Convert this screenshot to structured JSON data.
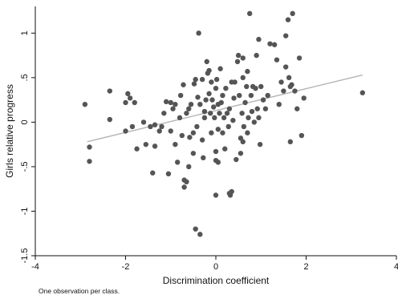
{
  "chart_data": {
    "type": "scatter",
    "title": "",
    "xlabel": "Discrimination coefficient",
    "ylabel": "Girls relative progress",
    "note": "One observation per class.",
    "xlim": [
      -4,
      4
    ],
    "ylim": [
      -1.5,
      1.3
    ],
    "x_ticks": [
      -4,
      -2,
      0,
      2,
      4
    ],
    "x_tick_labels": [
      "-4",
      "-2",
      "0",
      "2",
      "4"
    ],
    "y_ticks": [
      -1.5,
      -1,
      -0.5,
      0,
      0.5,
      1
    ],
    "y_tick_labels": [
      "-1.5",
      "-1",
      "-.5",
      "0",
      ".5",
      "1"
    ],
    "grid": false,
    "marker_color": "#555555",
    "fit_line": {
      "color": "#b4b4b4",
      "x": [
        -2.85,
        3.25
      ],
      "y": [
        -0.22,
        0.53
      ]
    },
    "points": [
      [
        -2.9,
        0.2
      ],
      [
        -2.8,
        -0.28
      ],
      [
        -2.8,
        -0.44
      ],
      [
        -2.35,
        0.03
      ],
      [
        -2.35,
        0.35
      ],
      [
        -2.0,
        -0.1
      ],
      [
        -2.0,
        0.22
      ],
      [
        -1.95,
        0.32
      ],
      [
        -1.9,
        0.27
      ],
      [
        -1.85,
        -0.05
      ],
      [
        -1.8,
        0.22
      ],
      [
        -1.75,
        -0.3
      ],
      [
        -1.6,
        0.0
      ],
      [
        -1.55,
        -0.25
      ],
      [
        -1.45,
        -0.05
      ],
      [
        -1.4,
        -0.57
      ],
      [
        -1.35,
        -0.03
      ],
      [
        -1.35,
        -0.27
      ],
      [
        -1.25,
        -0.1
      ],
      [
        -1.2,
        -0.05
      ],
      [
        -1.15,
        0.1
      ],
      [
        -1.1,
        0.23
      ],
      [
        -1.05,
        -0.58
      ],
      [
        -1.0,
        -0.1
      ],
      [
        -0.95,
        0.15
      ],
      [
        -0.9,
        0.2
      ],
      [
        -0.9,
        -0.25
      ],
      [
        -0.85,
        -0.45
      ],
      [
        -0.8,
        0.05
      ],
      [
        -0.78,
        0.3
      ],
      [
        -0.75,
        -0.15
      ],
      [
        -0.72,
        0.42
      ],
      [
        -0.7,
        -0.65
      ],
      [
        -0.7,
        -0.73
      ],
      [
        -0.65,
        -0.67
      ],
      [
        -0.65,
        0.1
      ],
      [
        -0.6,
        0.15
      ],
      [
        -0.58,
        -0.17
      ],
      [
        -0.55,
        0.2
      ],
      [
        -0.5,
        -0.12
      ],
      [
        -0.5,
        -0.35
      ],
      [
        -0.48,
        0.43
      ],
      [
        -0.45,
        0.48
      ],
      [
        -0.42,
        -0.05
      ],
      [
        -0.4,
        0.28
      ],
      [
        -0.38,
        1.0
      ],
      [
        -0.35,
        0.2
      ],
      [
        -0.3,
        0.48
      ],
      [
        -0.3,
        -0.2
      ],
      [
        -0.28,
        -0.4
      ],
      [
        -0.25,
        0.05
      ],
      [
        -0.22,
        0.25
      ],
      [
        -0.2,
        0.68
      ],
      [
        -0.18,
        0.55
      ],
      [
        -0.15,
        0.32
      ],
      [
        -0.12,
        0.1
      ],
      [
        -0.1,
        -0.12
      ],
      [
        -0.1,
        0.45
      ],
      [
        -0.08,
        0.25
      ],
      [
        -0.05,
        0.17
      ],
      [
        -0.03,
        0.05
      ],
      [
        0.0,
        0.38
      ],
      [
        0.0,
        -0.33
      ],
      [
        0.0,
        -0.43
      ],
      [
        0.02,
        0.48
      ],
      [
        0.05,
        0.2
      ],
      [
        0.05,
        -0.08
      ],
      [
        0.08,
        0.1
      ],
      [
        0.1,
        0.6
      ],
      [
        0.12,
        0.22
      ],
      [
        0.15,
        -0.12
      ],
      [
        0.18,
        0.05
      ],
      [
        0.2,
        -0.3
      ],
      [
        0.22,
        0.38
      ],
      [
        0.25,
        0.1
      ],
      [
        0.28,
        -0.05
      ],
      [
        0.3,
        0.15
      ],
      [
        0.32,
        -0.82
      ],
      [
        0.35,
        -0.78
      ],
      [
        0.38,
        0.02
      ],
      [
        0.4,
        0.27
      ],
      [
        0.42,
        0.45
      ],
      [
        0.45,
        -0.42
      ],
      [
        0.48,
        0.68
      ],
      [
        0.5,
        0.75
      ],
      [
        0.52,
        0.3
      ],
      [
        0.55,
        -0.18
      ],
      [
        0.55,
        -0.35
      ],
      [
        0.58,
        0.1
      ],
      [
        0.6,
        0.5
      ],
      [
        0.6,
        0.72
      ],
      [
        0.62,
        -0.05
      ],
      [
        0.65,
        0.22
      ],
      [
        0.68,
        0.4
      ],
      [
        0.7,
        -0.12
      ],
      [
        0.7,
        0.57
      ],
      [
        0.72,
        0.05
      ],
      [
        0.75,
        1.22
      ],
      [
        0.78,
        0.3
      ],
      [
        0.8,
        0.12
      ],
      [
        0.82,
        0.4
      ],
      [
        0.85,
        0.0
      ],
      [
        0.88,
        0.38
      ],
      [
        0.9,
        0.75
      ],
      [
        0.92,
        0.15
      ],
      [
        0.95,
        0.93
      ],
      [
        0.98,
        -0.25
      ],
      [
        1.0,
        0.4
      ],
      [
        1.05,
        0.25
      ],
      [
        1.1,
        0.15
      ],
      [
        1.15,
        0.3
      ],
      [
        1.2,
        0.88
      ],
      [
        1.3,
        0.87
      ],
      [
        1.35,
        0.7
      ],
      [
        1.4,
        0.2
      ],
      [
        1.45,
        0.45
      ],
      [
        1.5,
        0.35
      ],
      [
        1.55,
        0.62
      ],
      [
        1.55,
        0.97
      ],
      [
        1.6,
        1.15
      ],
      [
        1.62,
        0.5
      ],
      [
        1.65,
        -0.22
      ],
      [
        1.68,
        0.42
      ],
      [
        1.7,
        1.22
      ],
      [
        1.75,
        0.35
      ],
      [
        1.8,
        0.15
      ],
      [
        1.85,
        0.72
      ],
      [
        1.9,
        -0.15
      ],
      [
        1.95,
        0.27
      ],
      [
        -0.45,
        -1.2
      ],
      [
        -0.35,
        -1.26
      ],
      [
        0.0,
        -0.82
      ],
      [
        0.3,
        -0.8
      ],
      [
        3.25,
        0.33
      ],
      [
        1.65,
        0.4
      ],
      [
        0.15,
        0.3
      ],
      [
        -0.6,
        -0.5
      ],
      [
        0.95,
        0.05
      ],
      [
        -0.25,
        0.12
      ],
      [
        0.35,
        0.45
      ],
      [
        0.6,
        -0.22
      ],
      [
        -1.0,
        0.22
      ],
      [
        0.05,
        -0.45
      ],
      [
        -0.15,
        0.58
      ]
    ]
  }
}
